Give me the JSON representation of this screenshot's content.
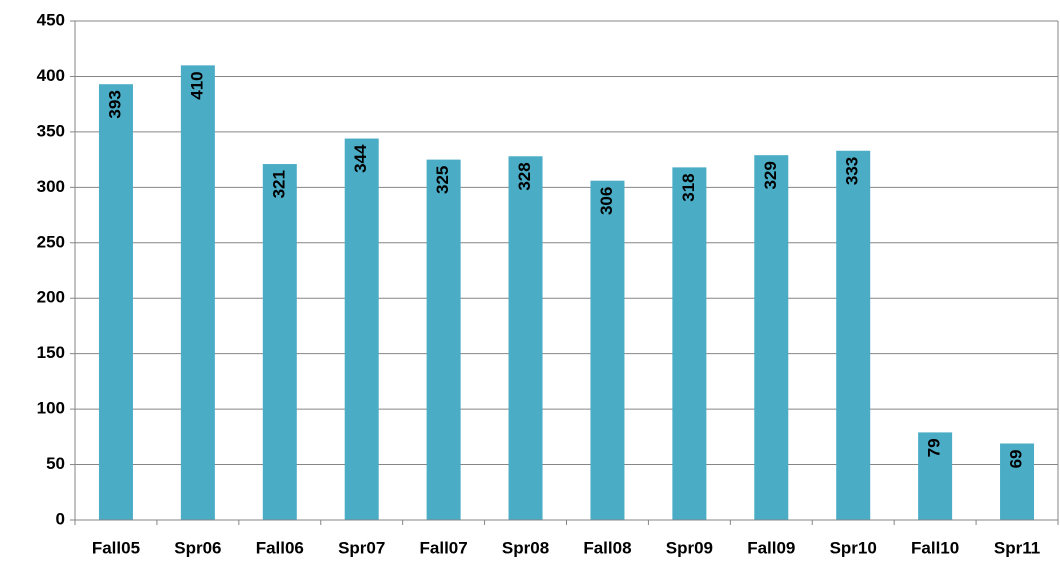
{
  "chart_data": {
    "type": "bar",
    "categories": [
      "Fall05",
      "Spr06",
      "Fall06",
      "Spr07",
      "Fall07",
      "Spr08",
      "Fall08",
      "Spr09",
      "Fall09",
      "Spr10",
      "Fall10",
      "Spr11"
    ],
    "values": [
      393,
      410,
      321,
      344,
      325,
      328,
      306,
      318,
      329,
      333,
      79,
      69
    ],
    "color": "#4bacc6",
    "ylim": [
      0,
      450
    ],
    "yticks": [
      0,
      50,
      100,
      150,
      200,
      250,
      300,
      350,
      400,
      450
    ],
    "grid": true
  }
}
